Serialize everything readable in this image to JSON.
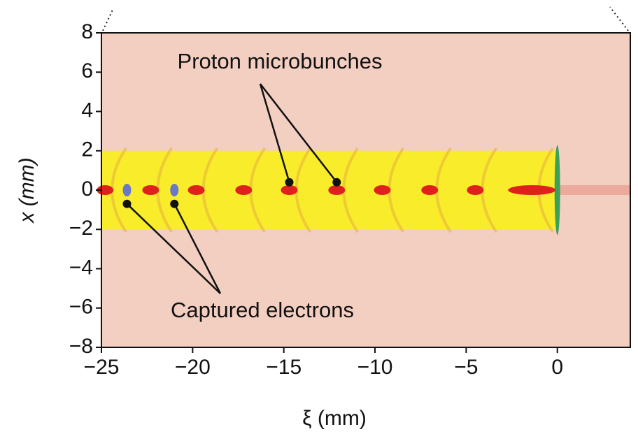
{
  "chart_data": {
    "type": "field",
    "x_label": "ξ (mm)",
    "y_label": "x (mm)",
    "xlim": [
      -25,
      4
    ],
    "ylim": [
      -8,
      8
    ],
    "xticks": [
      {
        "value": -25,
        "label": "−25"
      },
      {
        "value": -20,
        "label": "−20"
      },
      {
        "value": -15,
        "label": "−15"
      },
      {
        "value": -10,
        "label": "−10"
      },
      {
        "value": -5,
        "label": "−5"
      },
      0
    ],
    "yticks": [
      {
        "value": -8,
        "label": "−8"
      },
      {
        "value": -6,
        "label": "−6"
      },
      {
        "value": -4,
        "label": "−4"
      },
      {
        "value": -2,
        "label": "−2"
      },
      0,
      2,
      4,
      6,
      8
    ],
    "beam_band": [
      -2,
      2
    ],
    "microbunches": {
      "x": [
        -24.8,
        -22.3,
        -19.8,
        -17.2,
        -14.7,
        -12.1,
        -9.6,
        -7.0,
        -4.5,
        -1.4
      ],
      "color": "#e0201c"
    },
    "electrons": {
      "x": [
        -23.6,
        -21.0
      ],
      "color": "#6a78c8"
    },
    "annotations": [
      {
        "text": "Proton microbunches",
        "x": [
          -14.7,
          -12.1
        ],
        "y": [
          0.4,
          0.4
        ]
      },
      {
        "text": "Captured electrons",
        "x": [
          -23.6,
          -21.0
        ],
        "y": [
          -0.7,
          -0.7
        ]
      }
    ]
  }
}
